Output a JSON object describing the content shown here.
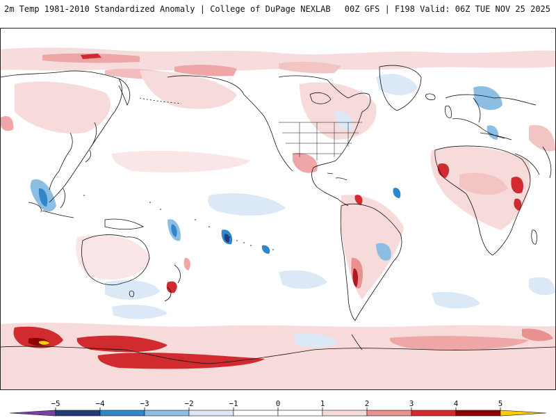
{
  "header": {
    "left_title": "2m Temp 1981-2010 Standardized Anomaly | College of DuPage NEXLAB",
    "right_title": "00Z GFS | F198 Valid: 06Z TUE NOV 25 2025"
  },
  "map": {
    "projection": "equirectangular",
    "center_longitude": "180",
    "field": "2m temperature standardized anomaly"
  },
  "legend": {
    "ticks": [
      "-5",
      "-4",
      "-3",
      "-2",
      "-1",
      "0",
      "1",
      "2",
      "3",
      "4",
      "5"
    ],
    "colors": [
      "#7b3fa6",
      "#1f3b7a",
      "#2f86c8",
      "#8cbde2",
      "#dbe9f6",
      "#ffffff",
      "#ffffff",
      "#f7dada",
      "#e79191",
      "#d12a2f",
      "#8b0000",
      "#ffcc00"
    ]
  }
}
